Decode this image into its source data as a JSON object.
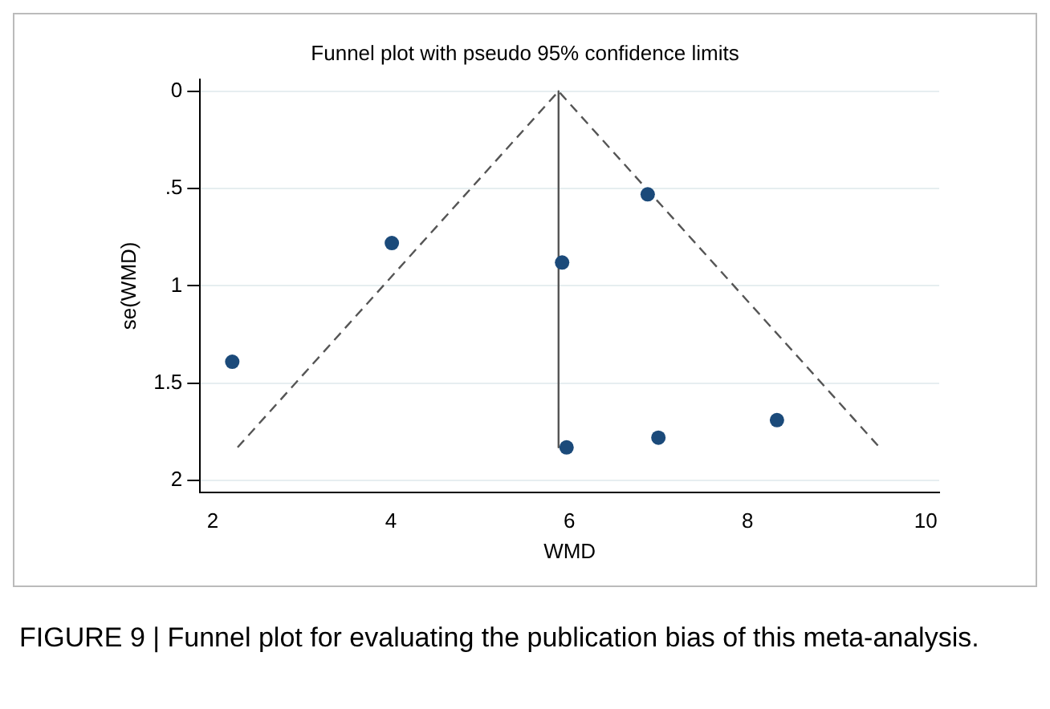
{
  "chart_data": {
    "type": "scatter",
    "title": "Funnel plot with pseudo 95% confidence limits",
    "xlabel": "WMD",
    "ylabel": "se(WMD)",
    "xlim": [
      1.86,
      10.15
    ],
    "xticks": [
      2,
      4,
      6,
      8,
      10
    ],
    "ylim": [
      2.06,
      -0.06
    ],
    "yticks": [
      0,
      {
        "value": 0.5,
        "label": ".5"
      },
      1,
      1.5,
      2
    ],
    "grid": "y",
    "legend": false,
    "series": [
      {
        "type": "scatter",
        "color": "#1b4a7a",
        "marker": "circle",
        "x": [
          2.22,
          4.01,
          5.92,
          6.88,
          5.97,
          7.0,
          8.33
        ],
        "values": [
          1.39,
          0.78,
          0.88,
          0.53,
          1.83,
          1.78,
          1.69
        ]
      },
      {
        "type": "line",
        "color": "#555555",
        "marker": "none",
        "line_style": "solid",
        "x": [
          5.88,
          5.88
        ],
        "values": [
          0,
          1.83
        ]
      },
      {
        "type": "line",
        "color": "#555555",
        "marker": "none",
        "line_style": "dashed",
        "x": [
          2.28,
          5.88,
          9.48
        ],
        "values": [
          1.83,
          0,
          1.83
        ]
      }
    ],
    "annotations": [
      "FIGURE 9 | Funnel plot for evaluating the publication bias of this meta-analysis."
    ]
  }
}
